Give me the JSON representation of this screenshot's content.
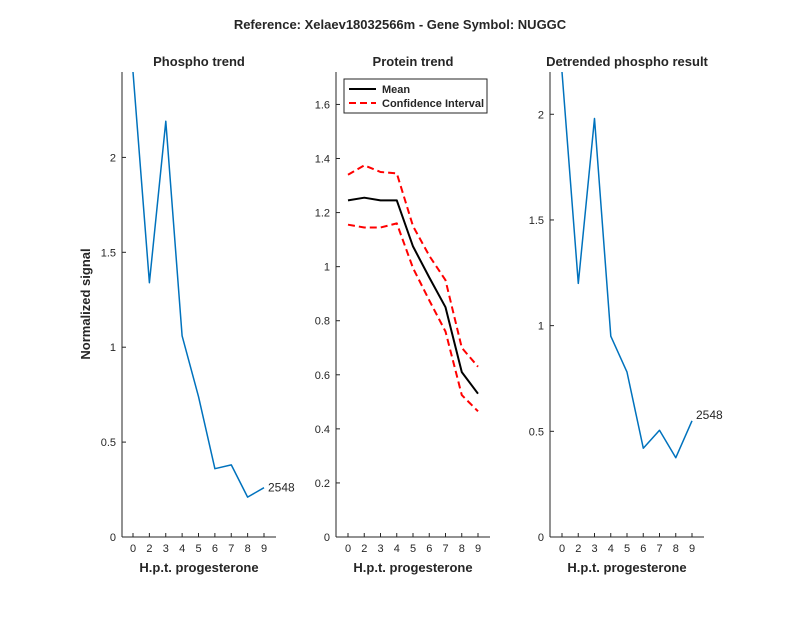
{
  "figure_title": "Reference:  Xelaev18032566m - Gene Symbol:  NUGGC",
  "colors": {
    "phospho_line": "#0072BD",
    "mean_line": "#000000",
    "ci_line": "#FF0000",
    "axis": "#262626"
  },
  "chart_data": [
    {
      "type": "line",
      "title": "Phospho trend",
      "xlabel": "H.p.t. progesterone",
      "ylabel": "Normalized signal",
      "x_ticks": [
        "0",
        "2",
        "3",
        "4",
        "5",
        "6",
        "7",
        "8",
        "9"
      ],
      "y_ticks": [
        "0",
        "0.5",
        "1",
        "1.5",
        "2"
      ],
      "ylim": [
        0,
        2.45
      ],
      "grid": false,
      "series": [
        {
          "values": [
            2.45,
            1.34,
            2.19,
            1.06,
            0.74,
            0.36,
            0.38,
            0.21,
            0.26
          ]
        }
      ],
      "end_label": "2548"
    },
    {
      "type": "line",
      "title": "Protein trend",
      "xlabel": "H.p.t. progesterone",
      "ylabel": "",
      "x_ticks": [
        "0",
        "2",
        "3",
        "4",
        "5",
        "6",
        "7",
        "8",
        "9"
      ],
      "y_ticks": [
        "0",
        "0.2",
        "0.4",
        "0.6",
        "0.8",
        "1",
        "1.2",
        "1.4",
        "1.6"
      ],
      "ylim": [
        0,
        1.72
      ],
      "grid": false,
      "legend": {
        "placement": "top-left",
        "entries": [
          "Mean",
          "Confidence Interval"
        ]
      },
      "series": [
        {
          "name": "Mean",
          "style": "solid",
          "values": [
            1.245,
            1.255,
            1.245,
            1.245,
            1.075,
            0.96,
            0.85,
            0.61,
            0.53
          ]
        },
        {
          "name": "Confidence Interval",
          "style": "dashed",
          "values": [
            1.34,
            1.375,
            1.35,
            1.345,
            1.15,
            1.04,
            0.95,
            0.7,
            0.63
          ]
        },
        {
          "name": "Confidence Interval",
          "style": "dashed",
          "show_in_legend": false,
          "values": [
            1.155,
            1.145,
            1.145,
            1.16,
            0.995,
            0.875,
            0.76,
            0.525,
            0.465
          ]
        }
      ]
    },
    {
      "type": "line",
      "title": "Detrended phospho result",
      "xlabel": "H.p.t. progesterone",
      "ylabel": "",
      "x_ticks": [
        "0",
        "2",
        "3",
        "4",
        "5",
        "6",
        "7",
        "8",
        "9"
      ],
      "y_ticks": [
        "0",
        "0.5",
        "1",
        "1.5",
        "2"
      ],
      "ylim": [
        0,
        2.2
      ],
      "grid": false,
      "series": [
        {
          "values": [
            2.2,
            1.2,
            1.98,
            0.95,
            0.78,
            0.42,
            0.505,
            0.375,
            0.55
          ]
        }
      ],
      "end_label": "2548"
    }
  ]
}
